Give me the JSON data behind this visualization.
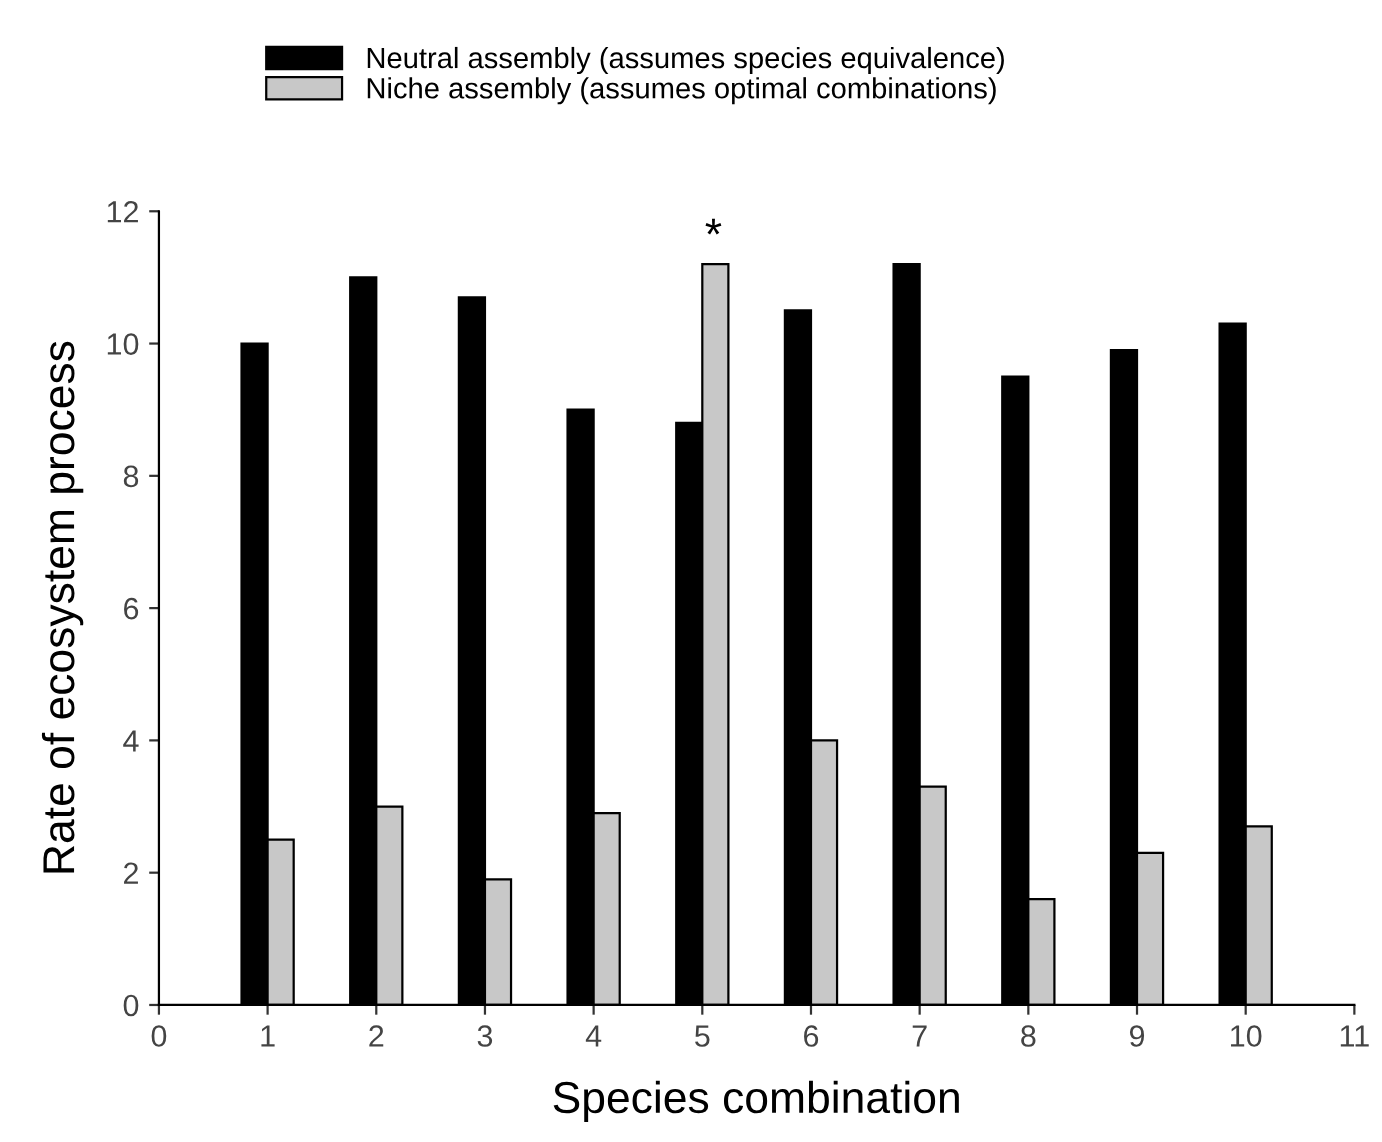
{
  "chart_data": {
    "type": "bar",
    "xlabel": "Species combination",
    "ylabel": "Rate of ecosystem process",
    "x": [
      1,
      2,
      3,
      4,
      5,
      6,
      7,
      8,
      9,
      10
    ],
    "series": [
      {
        "name": "Neutral assembly (assumes species equivalence)",
        "color": "#000000",
        "values": [
          10,
          11,
          10.7,
          9,
          8.8,
          10.5,
          11.2,
          9.5,
          9.9,
          10.3
        ]
      },
      {
        "name": "Niche assembly (assumes optimal combinations)",
        "color": "#c8c8c8",
        "values": [
          2.5,
          3,
          1.9,
          2.9,
          11.2,
          4,
          3.3,
          1.6,
          2.3,
          2.7
        ]
      }
    ],
    "xlim": [
      0,
      11
    ],
    "xticks": [
      0,
      1,
      2,
      3,
      4,
      5,
      6,
      7,
      8,
      9,
      10,
      11
    ],
    "ylim": [
      0,
      12
    ],
    "yticks": [
      0,
      2,
      4,
      6,
      8,
      10,
      12
    ],
    "annotations": [
      {
        "text": "*",
        "x": 5,
        "y": 11.2
      }
    ],
    "legend": "top left",
    "grid": false
  }
}
